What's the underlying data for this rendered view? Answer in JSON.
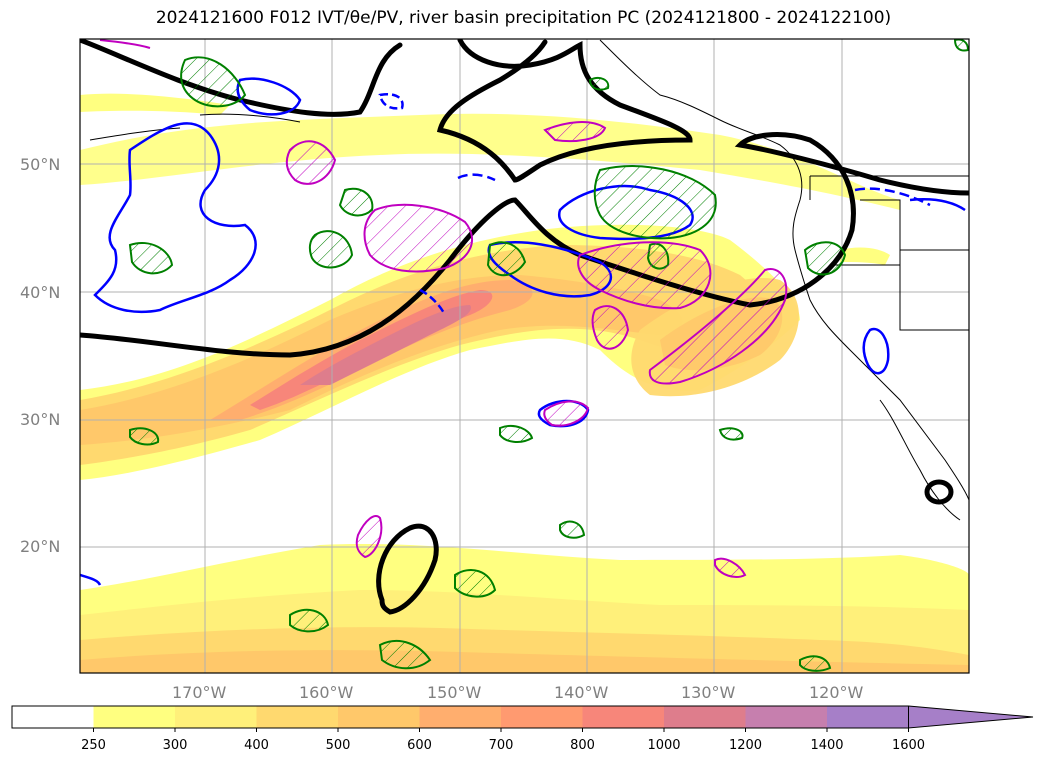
{
  "title": "2024121600 F012 IVT/θe/PV, river basin precipitation PC (2024121800 - 2024122100)",
  "map": {
    "lat_labels": [
      "50°N",
      "40°N",
      "30°N",
      "20°N"
    ],
    "lon_labels": [
      "170°W",
      "160°W",
      "150°W",
      "140°W",
      "130°W",
      "120°W"
    ],
    "contour_colors": {
      "theta_e": "#000000",
      "pv": "#0000ff",
      "precip_pc_a": "#008000",
      "precip_pc_b": "#c000c0"
    }
  },
  "colorbar": {
    "ticks": [
      "250",
      "300",
      "400",
      "500",
      "600",
      "700",
      "800",
      "1000",
      "1200",
      "1400",
      "1600"
    ],
    "colors": [
      "#ffffff",
      "#ffff80",
      "#fff07a",
      "#ffd96f",
      "#ffc86a",
      "#ffae6e",
      "#ff9a70",
      "#f7867a",
      "#de7d8c",
      "#c67fae",
      "#a67fc8"
    ],
    "extend": "max"
  }
}
